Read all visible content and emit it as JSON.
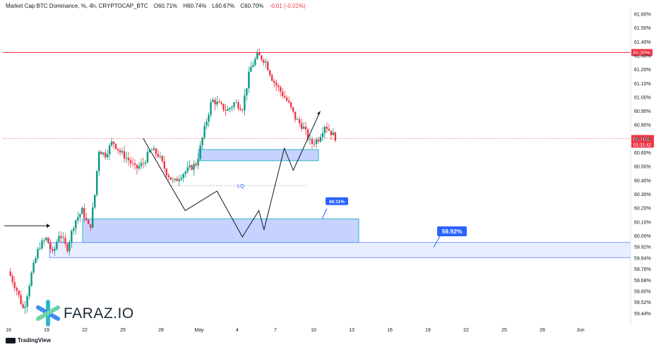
{
  "header": {
    "symbol": "Market Cap BTC Dominance, %, 4h, CRYPTOCAP_BTC",
    "open": "O60.71%",
    "high": "H60.74%",
    "low": "L60.67%",
    "close": "C60.70%",
    "change": "-0.01 (-0.01%)"
  },
  "colors": {
    "up": "#089981",
    "down": "#f23645",
    "zone_fill": "#b3c7ff",
    "zone_border": "#2fb7c7",
    "lq_line": "#7f8ca0",
    "resistance": "#f23645",
    "badge": "#2962ff",
    "projection": "#131722"
  },
  "chart_data": {
    "type": "candlestick",
    "y_axis": {
      "ticks": [
        "61.60%",
        "61.50%",
        "61.40%",
        "61.30%",
        "61.20%",
        "61.10%",
        "61.00%",
        "60.90%",
        "60.80%",
        "60.70%",
        "60.60%",
        "60.50%",
        "60.40%",
        "60.30%",
        "60.20%",
        "60.10%",
        "60.00%",
        "59.92%",
        "59.84%",
        "59.76%",
        "59.68%",
        "59.60%",
        "59.52%",
        "59.44%"
      ],
      "range": [
        59.41,
        61.66
      ]
    },
    "x_axis": {
      "ticks": [
        "16",
        "19",
        "22",
        "25",
        "28",
        "May",
        "4",
        "7",
        "10",
        "13",
        "16",
        "19",
        "22",
        "25",
        "28",
        "Jun"
      ]
    },
    "resistance": {
      "value": 61.32,
      "label": "61.32%"
    },
    "last_price": {
      "value": 60.7,
      "label": "60.70%",
      "countdown": "01:31:42"
    },
    "zones": [
      {
        "name": "demand-zone-upper",
        "from": 59.95,
        "to": 60.12,
        "x_start": "19",
        "x_end": "13"
      },
      {
        "name": "demand-zone-lower",
        "from": 59.84,
        "to": 59.95,
        "x_start": "19",
        "x_end": "Jun"
      },
      {
        "name": "liquidity-box",
        "from": 60.54,
        "to": 60.62,
        "x_start": "May",
        "x_end": "10"
      }
    ],
    "annotations": [
      {
        "text": "LQ",
        "value": 60.36
      },
      {
        "text": "60.11%",
        "value": 60.11
      },
      {
        "text": "59.92%",
        "value": 59.92
      }
    ],
    "projection": [
      [
        10.6,
        60.7
      ],
      [
        13.9,
        60.18
      ],
      [
        16.4,
        60.32
      ],
      [
        18.4,
        59.99
      ],
      [
        19.7,
        60.18
      ],
      [
        20.1,
        60.04
      ],
      [
        21.7,
        60.63
      ],
      [
        22.4,
        60.47
      ],
      [
        24.5,
        60.89
      ]
    ],
    "candles": []
  },
  "branding": {
    "logo_text": "FARAZ.IO",
    "footer": "TradingView"
  }
}
